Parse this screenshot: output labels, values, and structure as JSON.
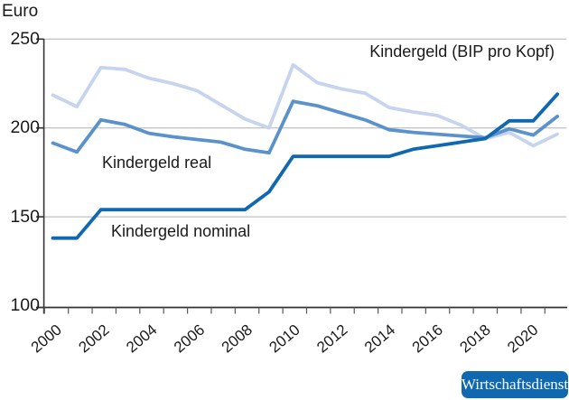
{
  "header": {
    "unit_label": "Euro"
  },
  "series_labels": {
    "bip": "Kindergeld (BIP pro Kopf)",
    "real": "Kindergeld real",
    "nominal": "Kindergeld nominal"
  },
  "badge": {
    "label": "Wirtschaftsdienst",
    "color": "#1068b1",
    "text_color": "#ffffff"
  },
  "colors": {
    "grid": "#b0b0b0",
    "axis": "#333333",
    "tick": "#595959",
    "text": "#1a1a1a",
    "line_bip": "#c7d4ed",
    "line_real": "#5b92cc",
    "line_nominal": "#1068b1"
  },
  "y_axis": {
    "tick_labels": [
      "250",
      "200",
      "150",
      "100"
    ],
    "values": [
      250,
      200,
      150,
      100
    ]
  },
  "x_axis": {
    "shown_labels": [
      "2000",
      "2002",
      "2004",
      "2006",
      "2008",
      "2010",
      "2012",
      "2014",
      "2016",
      "2018",
      "2020"
    ]
  },
  "chart_data": {
    "type": "line",
    "title": "",
    "ylabel": "Euro",
    "ylim": [
      100,
      250
    ],
    "grid": "horizontal",
    "legend": "inline-labels",
    "x": [
      2000,
      2001,
      2002,
      2003,
      2004,
      2005,
      2006,
      2007,
      2008,
      2009,
      2010,
      2011,
      2012,
      2013,
      2014,
      2015,
      2016,
      2017,
      2018,
      2019,
      2020,
      2021
    ],
    "x_tick_step_labeled": 2,
    "series": [
      {
        "name": "Kindergeld (BIP pro Kopf)",
        "color": "#c7d4ed",
        "values": [
          218.5,
          212,
          234,
          233,
          228,
          225,
          221,
          213,
          205,
          200,
          235.5,
          225.5,
          222,
          219.5,
          211.5,
          209,
          207,
          201.5,
          194,
          197.5,
          190,
          196.5
        ]
      },
      {
        "name": "Kindergeld real",
        "color": "#5b92cc",
        "values": [
          191.5,
          186.5,
          204.5,
          202,
          197,
          195,
          193.5,
          192,
          188,
          186,
          215,
          212.5,
          208.5,
          204.5,
          199,
          197.5,
          196.5,
          195.5,
          194.5,
          199.5,
          196,
          206.5
        ]
      },
      {
        "name": "Kindergeld nominal",
        "color": "#1068b1",
        "values": [
          138,
          138,
          154,
          154,
          154,
          154,
          154,
          154,
          154,
          164,
          184,
          184,
          184,
          184,
          184,
          188,
          190,
          192,
          194,
          204,
          204,
          219
        ]
      }
    ]
  }
}
